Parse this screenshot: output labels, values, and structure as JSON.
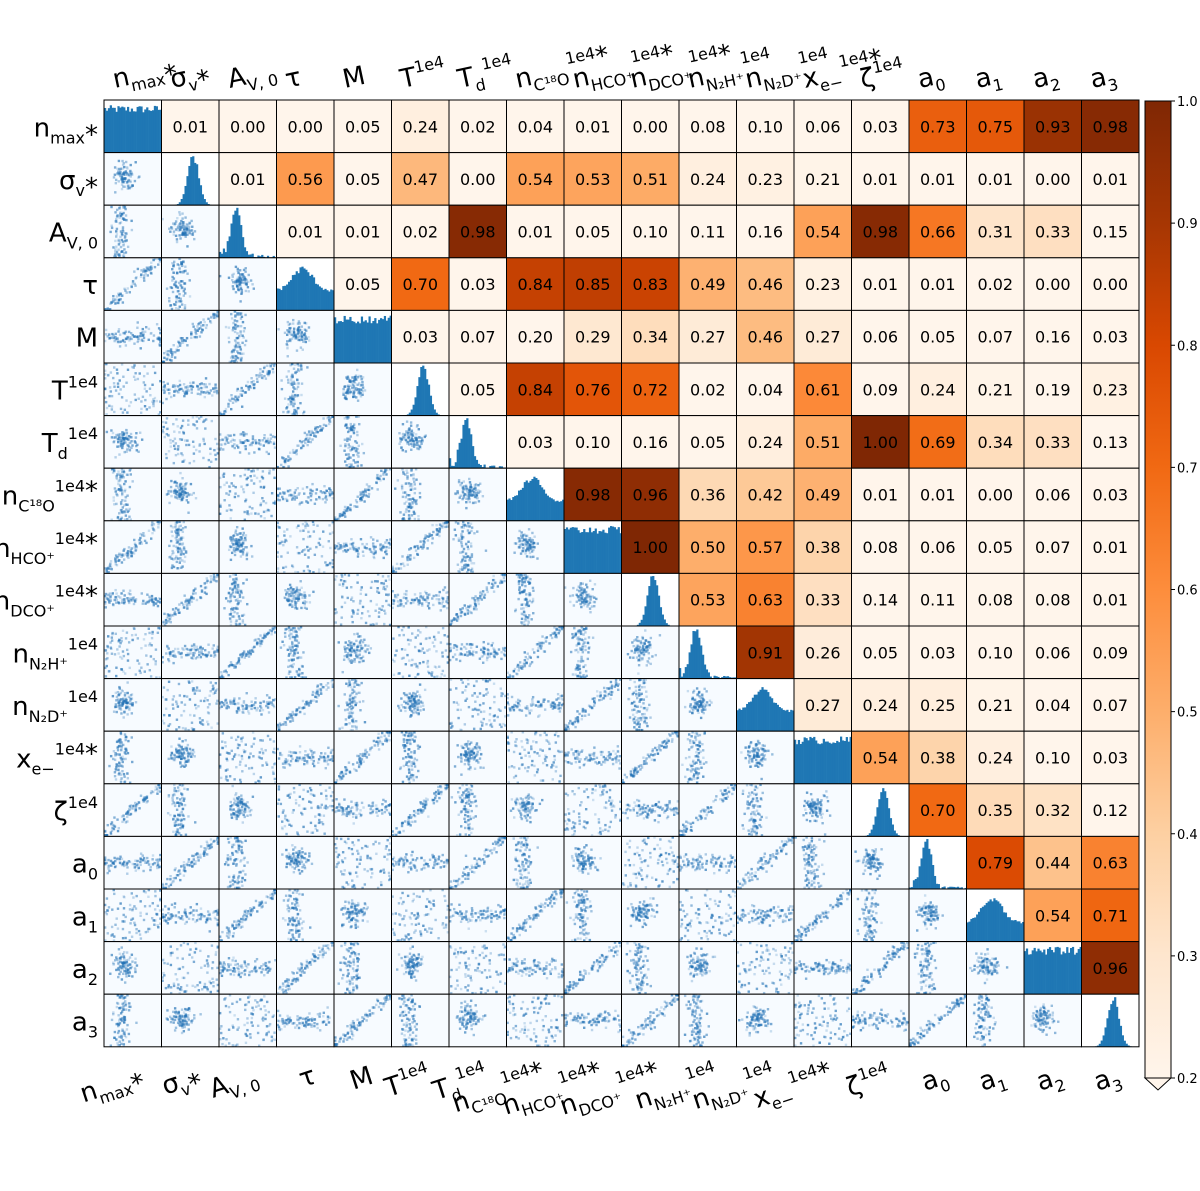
{
  "chart_data": {
    "type": "heatmap",
    "variables": [
      {
        "base": "n",
        "sub": "max",
        "sup": "",
        "star": true
      },
      {
        "base": "σ",
        "sub": "v",
        "sup": "",
        "star": true
      },
      {
        "base": "A",
        "sub": "V, 0",
        "sup": "",
        "star": false
      },
      {
        "base": "τ",
        "sub": "",
        "sup": "",
        "star": false
      },
      {
        "base": "M",
        "sub": "",
        "sup": "",
        "star": false
      },
      {
        "base": "T",
        "sub": "",
        "sup": "1e4",
        "star": false
      },
      {
        "base": "T",
        "sub": "d",
        "sup": "1e4",
        "star": false
      },
      {
        "base": "n",
        "sub": "C¹⁸O",
        "sup": "1e4",
        "star": true
      },
      {
        "base": "n",
        "sub": "HCO⁺",
        "sup": "1e4",
        "star": true
      },
      {
        "base": "n",
        "sub": "DCO⁺",
        "sup": "1e4",
        "star": true
      },
      {
        "base": "n",
        "sub": "N₂H⁺",
        "sup": "1e4",
        "star": false
      },
      {
        "base": "n",
        "sub": "N₂D⁺",
        "sup": "1e4",
        "star": false
      },
      {
        "base": "x",
        "sub": "e−",
        "sup": "1e4",
        "star": true
      },
      {
        "base": "ζ",
        "sub": "",
        "sup": "1e4",
        "star": false
      },
      {
        "base": "a",
        "sub": "0",
        "sup": "",
        "star": false
      },
      {
        "base": "a",
        "sub": "1",
        "sup": "",
        "star": false
      },
      {
        "base": "a",
        "sub": "2",
        "sup": "",
        "star": false
      },
      {
        "base": "a",
        "sub": "3",
        "sup": "",
        "star": false
      }
    ],
    "upper_triangle_values": [
      [
        "0.01",
        "0.00",
        "0.00",
        "0.05",
        "0.24",
        "0.02",
        "0.04",
        "0.01",
        "0.00",
        "0.08",
        "0.10",
        "0.06",
        "0.03",
        "0.73",
        "0.75",
        "0.93",
        "0.98"
      ],
      [
        "0.01",
        "0.56",
        "0.05",
        "0.47",
        "0.00",
        "0.54",
        "0.53",
        "0.51",
        "0.24",
        "0.23",
        "0.21",
        "0.01",
        "0.01",
        "0.01",
        "0.00",
        "0.01"
      ],
      [
        "0.01",
        "0.01",
        "0.02",
        "0.98",
        "0.01",
        "0.05",
        "0.10",
        "0.11",
        "0.16",
        "0.54",
        "0.98",
        "0.66",
        "0.31",
        "0.33",
        "0.15"
      ],
      [
        "0.05",
        "0.70",
        "0.03",
        "0.84",
        "0.85",
        "0.83",
        "0.49",
        "0.46",
        "0.23",
        "0.01",
        "0.01",
        "0.02",
        "0.00",
        "0.00"
      ],
      [
        "0.03",
        "0.07",
        "0.20",
        "0.29",
        "0.34",
        "0.27",
        "0.46",
        "0.27",
        "0.06",
        "0.05",
        "0.07",
        "0.16",
        "0.03"
      ],
      [
        "0.05",
        "0.84",
        "0.76",
        "0.72",
        "0.02",
        "0.04",
        "0.61",
        "0.09",
        "0.24",
        "0.21",
        "0.19",
        "0.23"
      ],
      [
        "0.03",
        "0.10",
        "0.16",
        "0.05",
        "0.24",
        "0.51",
        "1.00",
        "0.69",
        "0.34",
        "0.33",
        "0.13"
      ],
      [
        "0.98",
        "0.96",
        "0.36",
        "0.42",
        "0.49",
        "0.01",
        "0.01",
        "0.00",
        "0.06",
        "0.03"
      ],
      [
        "1.00",
        "0.50",
        "0.57",
        "0.38",
        "0.08",
        "0.06",
        "0.05",
        "0.07",
        "0.01"
      ],
      [
        "0.53",
        "0.63",
        "0.33",
        "0.14",
        "0.11",
        "0.08",
        "0.08",
        "0.01"
      ],
      [
        "0.91",
        "0.26",
        "0.05",
        "0.03",
        "0.10",
        "0.06",
        "0.09"
      ],
      [
        "0.27",
        "0.24",
        "0.25",
        "0.21",
        "0.04",
        "0.07"
      ],
      [
        "0.54",
        "0.38",
        "0.24",
        "0.10",
        "0.03"
      ],
      [
        "0.70",
        "0.35",
        "0.32",
        "0.12"
      ],
      [
        "0.79",
        "0.44",
        "0.63"
      ],
      [
        "0.54",
        "0.71"
      ],
      [
        "0.96"
      ]
    ],
    "colorbar": {
      "colormap": "Oranges",
      "vmin": 0.2,
      "vmax": 1.0,
      "extend": "min",
      "ticks": [
        "0.2",
        "0.3",
        "0.4",
        "0.5",
        "0.6",
        "0.7",
        "0.8",
        "0.9",
        "1.0"
      ]
    },
    "diagonal": "1D histograms",
    "lower_triangle": "2D density plots",
    "colors": {
      "hist": "#1f77b4",
      "density_low": "#f7fbff",
      "density_high": "#08306b",
      "cmap_low": "#fff5eb",
      "cmap_high": "#7f2704"
    }
  }
}
